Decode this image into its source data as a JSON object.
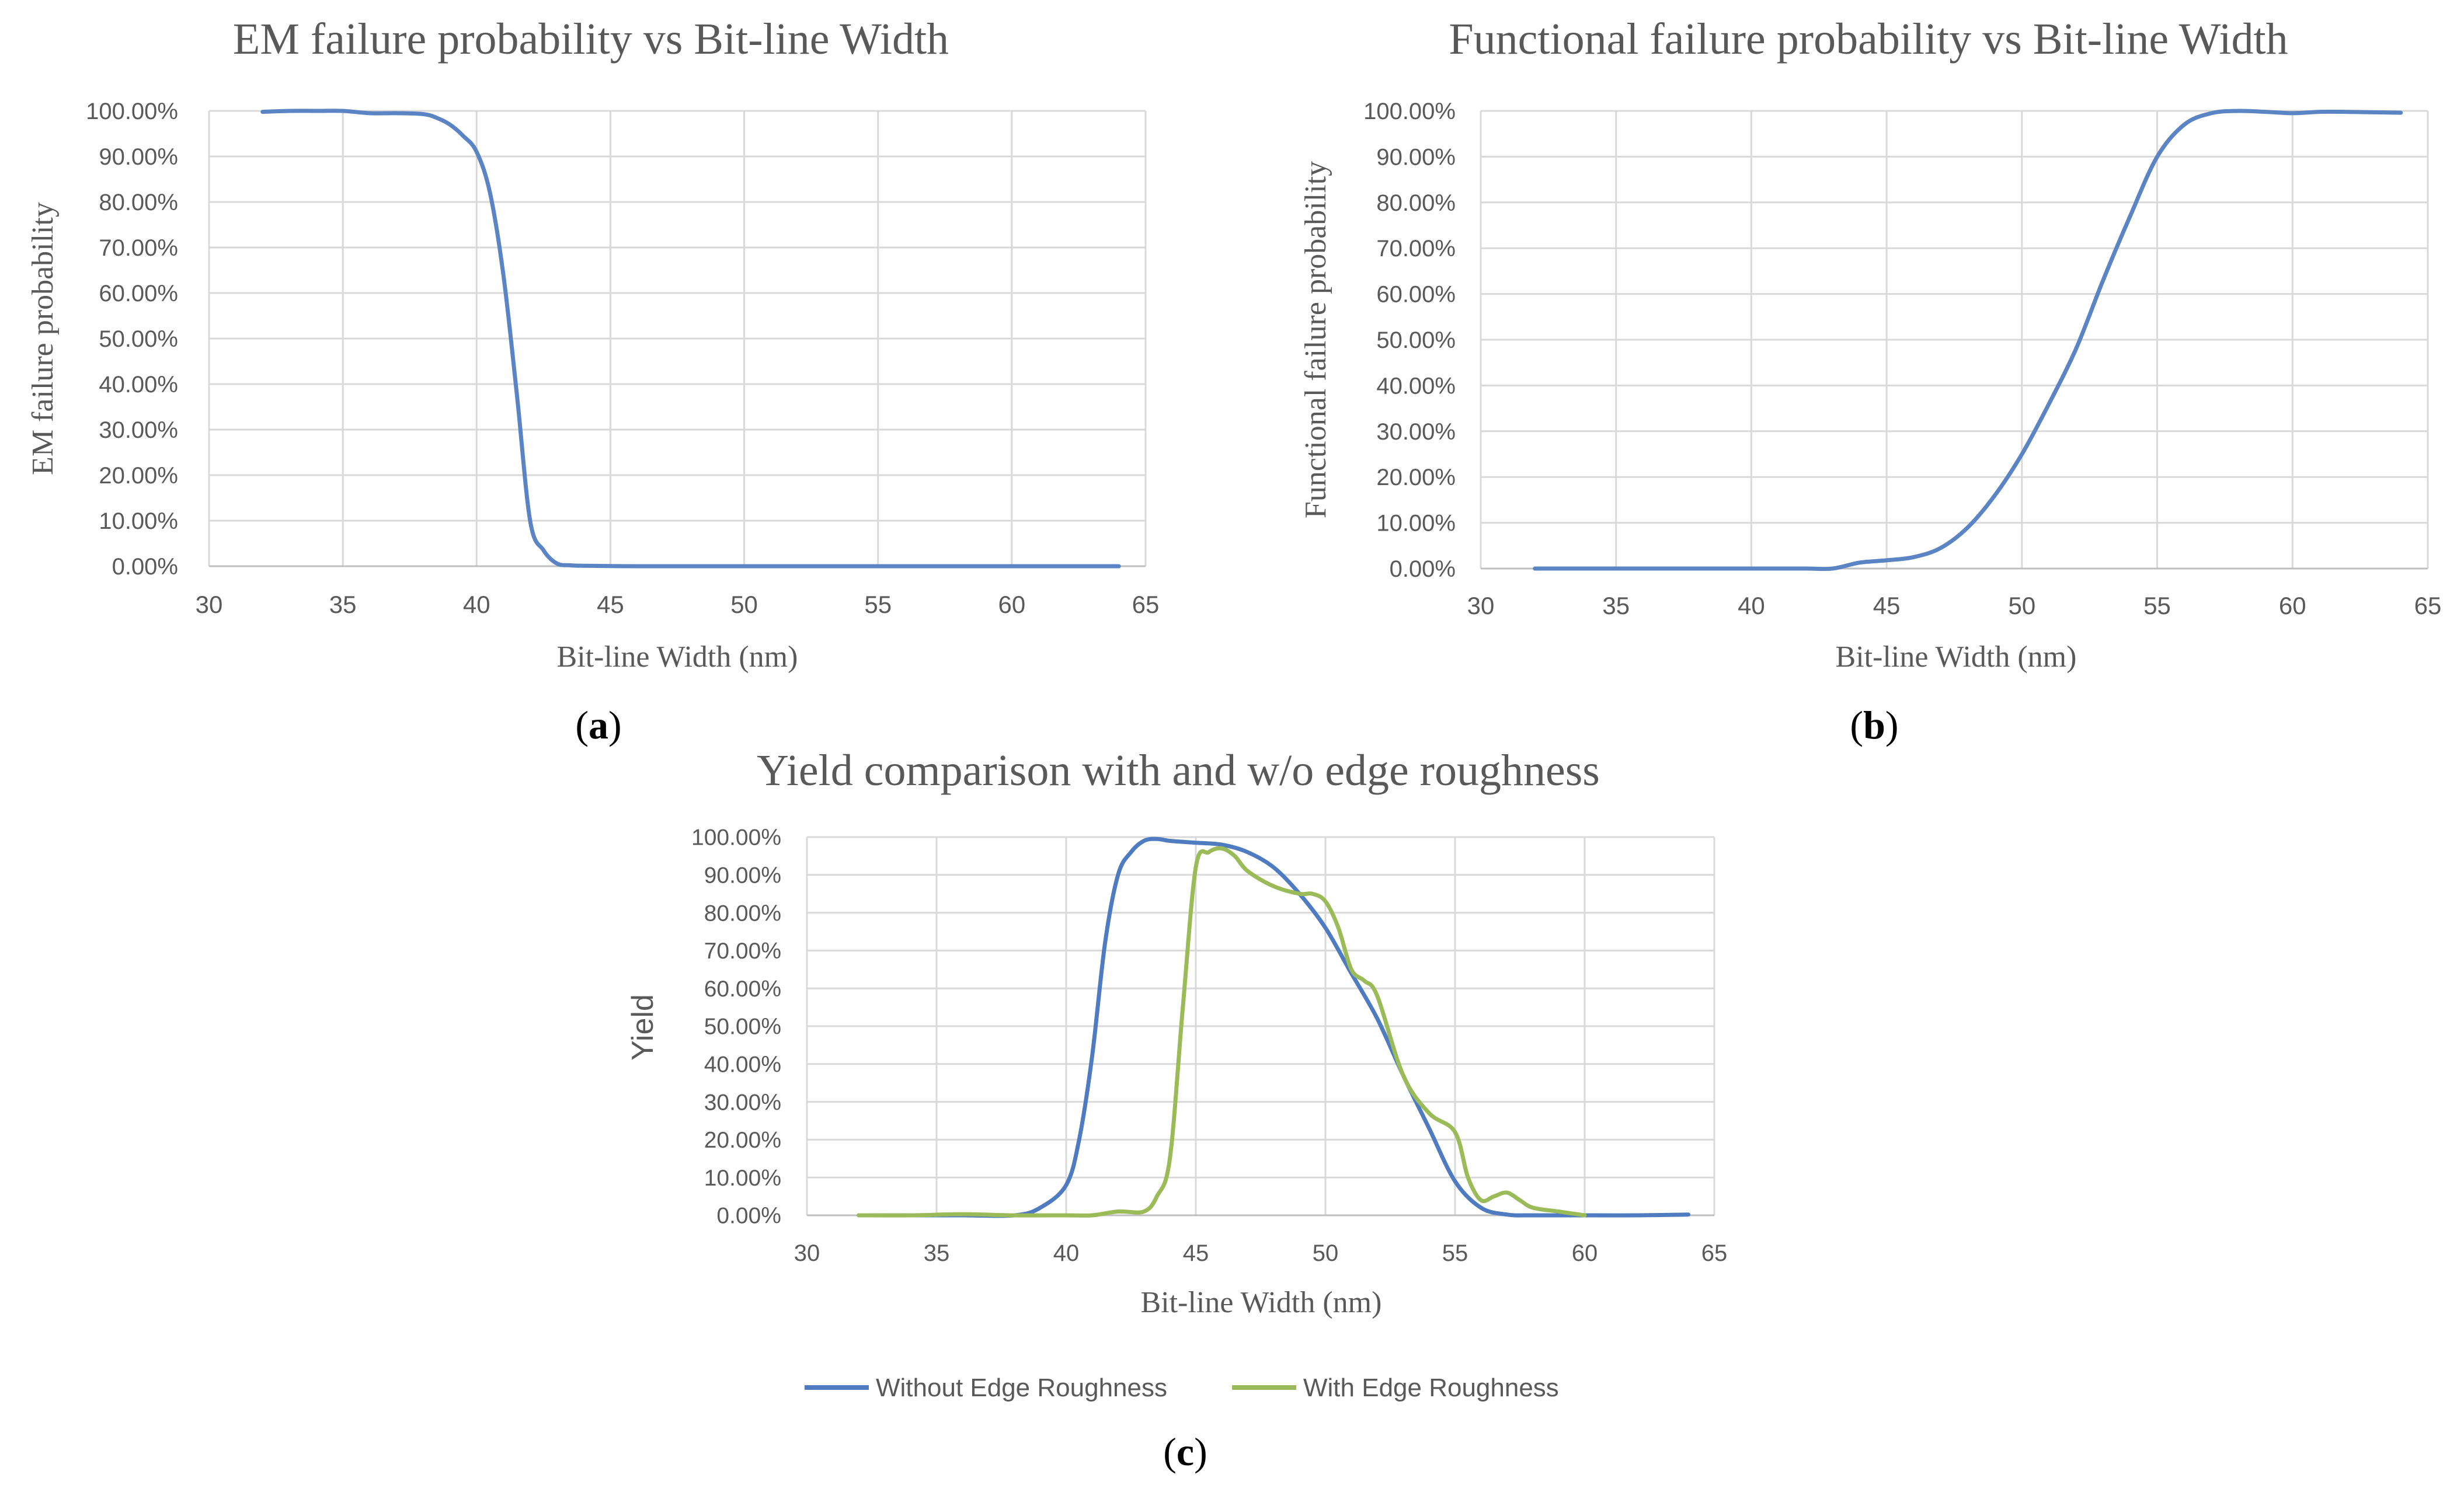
{
  "chart_data": [
    {
      "id": "a",
      "type": "line",
      "panel_label_open": "(",
      "panel_label": "a",
      "panel_label_close": ")",
      "title": "EM failure probability vs Bit-line Width",
      "xlabel": "Bit-line Width (nm)",
      "ylabel": "EM failure probability",
      "xlim": [
        30,
        65
      ],
      "ylim": [
        0,
        1
      ],
      "xticks": [
        "30",
        "35",
        "40",
        "45",
        "50",
        "55",
        "60",
        "65"
      ],
      "yticks": [
        "0.00%",
        "10.00%",
        "20.00%",
        "30.00%",
        "40.00%",
        "50.00%",
        "60.00%",
        "70.00%",
        "80.00%",
        "90.00%",
        "100.00%"
      ],
      "grid": true,
      "series": [
        {
          "name": "EM failure probability",
          "color": "#5B84C4",
          "x": [
            32,
            33,
            34,
            35,
            36,
            37,
            38,
            38.5,
            39,
            39.5,
            40,
            40.5,
            41,
            41.5,
            42,
            42.5,
            43,
            43.5,
            44,
            46,
            48,
            50,
            52,
            54,
            56,
            58,
            60,
            62,
            64
          ],
          "y": [
            0.998,
            1.0,
            1.0,
            1.0,
            0.995,
            0.995,
            0.993,
            0.985,
            0.97,
            0.945,
            0.91,
            0.82,
            0.64,
            0.38,
            0.1,
            0.035,
            0.006,
            0.002,
            0.001,
            0.0,
            0.0,
            0.0,
            0.0,
            0.0,
            0.0,
            0.0,
            0.0,
            0.0,
            0.0
          ]
        }
      ]
    },
    {
      "id": "b",
      "type": "line",
      "panel_label_open": "(",
      "panel_label": "b",
      "panel_label_close": ")",
      "title": "Functional failure probability vs Bit-line Width",
      "xlabel": "Bit-line Width (nm)",
      "ylabel": "Functional failure probability",
      "xlim": [
        30,
        65
      ],
      "ylim": [
        0,
        1
      ],
      "xticks": [
        "30",
        "35",
        "40",
        "45",
        "50",
        "55",
        "60",
        "65"
      ],
      "yticks": [
        "0.00%",
        "10.00%",
        "20.00%",
        "30.00%",
        "40.00%",
        "50.00%",
        "60.00%",
        "70.00%",
        "80.00%",
        "90.00%",
        "100.00%"
      ],
      "grid": true,
      "series": [
        {
          "name": "Functional failure probability",
          "color": "#5B84C4",
          "x": [
            32,
            34,
            36,
            38,
            40,
            42,
            43,
            44,
            45,
            46,
            47,
            48,
            49,
            50,
            51,
            52,
            53,
            54,
            55,
            56,
            57,
            58,
            59,
            60,
            61,
            62,
            63,
            64
          ],
          "y": [
            0.0,
            0.0,
            0.0,
            0.0,
            0.0,
            0.0,
            0.0,
            0.013,
            0.018,
            0.025,
            0.045,
            0.09,
            0.16,
            0.25,
            0.36,
            0.48,
            0.63,
            0.77,
            0.9,
            0.97,
            0.995,
            1.0,
            0.998,
            0.995,
            0.998,
            0.998,
            0.997,
            0.996
          ]
        }
      ]
    },
    {
      "id": "c",
      "type": "line",
      "panel_label_open": "(",
      "panel_label": "c",
      "panel_label_close": ")",
      "title": "Yield comparison with and w/o edge roughness",
      "xlabel": "Bit-line Width (nm)",
      "ylabel": "Yield",
      "xlim": [
        30,
        65
      ],
      "ylim": [
        0,
        1
      ],
      "xticks": [
        "30",
        "35",
        "40",
        "45",
        "50",
        "55",
        "60",
        "65"
      ],
      "yticks": [
        "0.00%",
        "10.00%",
        "20.00%",
        "30.00%",
        "40.00%",
        "50.00%",
        "60.00%",
        "70.00%",
        "80.00%",
        "90.00%",
        "100.00%"
      ],
      "grid": true,
      "legend": "bottom",
      "series": [
        {
          "name": "Without Edge Roughness",
          "color": "#4F7CC0",
          "x": [
            32,
            34,
            36,
            38,
            39,
            40,
            40.5,
            41,
            41.5,
            42,
            42.5,
            43,
            43.5,
            44,
            45,
            46,
            47,
            48,
            49,
            50,
            51,
            52,
            53,
            54,
            55,
            56,
            57,
            58,
            60,
            62,
            64
          ],
          "y": [
            0.0,
            0.0,
            0.0,
            0.0,
            0.02,
            0.08,
            0.2,
            0.42,
            0.72,
            0.9,
            0.96,
            0.99,
            0.995,
            0.99,
            0.985,
            0.98,
            0.96,
            0.92,
            0.85,
            0.76,
            0.64,
            0.52,
            0.37,
            0.23,
            0.09,
            0.02,
            0.002,
            0.0,
            0.0,
            0.0,
            0.002
          ]
        },
        {
          "name": "With Edge Roughness",
          "color": "#9BBB59",
          "x": [
            32,
            34,
            36,
            38,
            40,
            41,
            42,
            43,
            43.5,
            44,
            44.5,
            45,
            45.5,
            46,
            46.5,
            47,
            48,
            49,
            49.5,
            50,
            50.5,
            51,
            51.5,
            52,
            53,
            54,
            55,
            55.5,
            56,
            56.5,
            57,
            57.5,
            58,
            59,
            60
          ],
          "y": [
            0.0,
            0.0,
            0.003,
            0.0,
            0.0,
            0.0,
            0.01,
            0.01,
            0.05,
            0.15,
            0.55,
            0.92,
            0.96,
            0.97,
            0.95,
            0.91,
            0.87,
            0.85,
            0.85,
            0.83,
            0.76,
            0.65,
            0.62,
            0.58,
            0.37,
            0.27,
            0.22,
            0.1,
            0.04,
            0.05,
            0.06,
            0.04,
            0.02,
            0.01,
            0.0
          ]
        }
      ]
    }
  ]
}
